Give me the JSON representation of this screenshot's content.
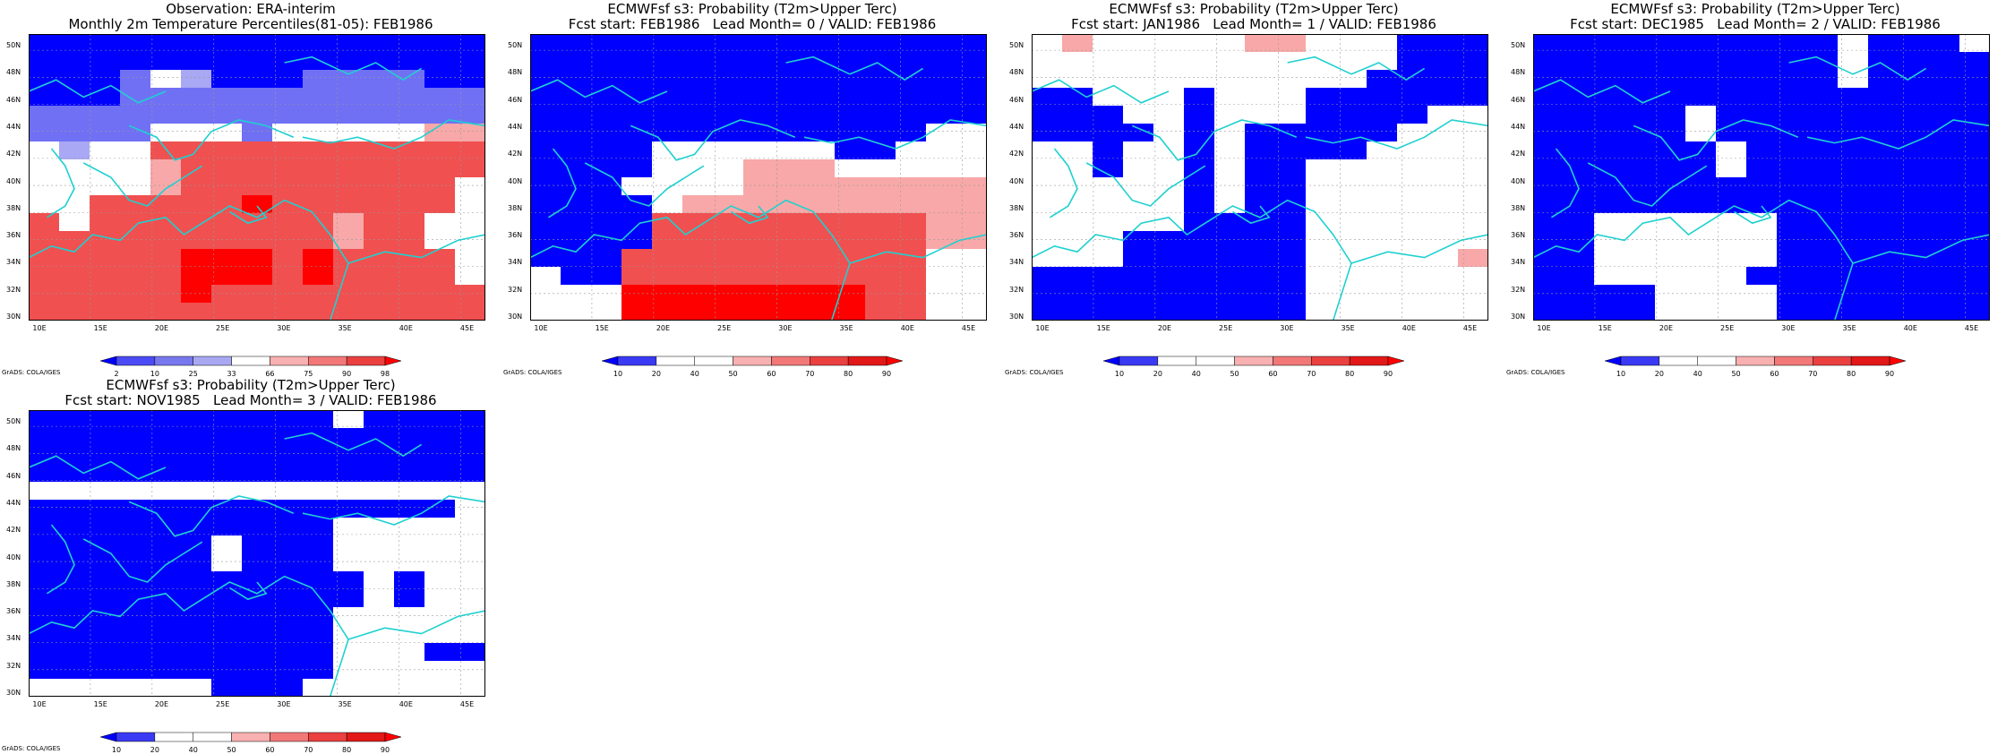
{
  "grads_credit": "GrADS: COLA/IGES",
  "lon_labels": [
    "10E",
    "15E",
    "20E",
    "25E",
    "30E",
    "35E",
    "40E",
    "45E"
  ],
  "lat_labels": [
    "30N",
    "32N",
    "34N",
    "36N",
    "38N",
    "40N",
    "42N",
    "44N",
    "46N",
    "48N",
    "50N"
  ],
  "obs_legend": {
    "labels": [
      "2",
      "10",
      "25",
      "33",
      "66",
      "75",
      "90",
      "98"
    ],
    "colors": [
      "#0000ff",
      "#4b4bf5",
      "#7878ee",
      "#a8a8f2",
      "#ffffff",
      "#f8b0b0",
      "#f27878",
      "#ea4040",
      "#ff0000"
    ]
  },
  "prob_legend": {
    "labels": [
      "10",
      "20",
      "40",
      "50",
      "60",
      "70",
      "80",
      "90"
    ],
    "colors": [
      "#0000ff",
      "#3a3af5",
      "#ffffff",
      "#ffffff",
      "#f8b0b0",
      "#f27878",
      "#ea4040",
      "#e21818",
      "#ff0000"
    ]
  },
  "panels": [
    {
      "title1": "Observation: ERA-interim",
      "title2": "Monthly 2m Temperature Percentiles(81-05): FEB1986",
      "legend": "obs",
      "grid": [
        "BBBBBBBBBBBBBBB",
        "BBBBBBBBBBBBBBB",
        "BBBmMlBBBmmmmBB",
        "BBBmmmmmmmmmmmm",
        "mmmmmmmmmmmmmmm",
        "mmmmWWWmWWWWWrr",
        "WlWWRRRRRRRRRRR",
        "WWWWrRRRRRRRRRR",
        "WWWWrRRRRRRRRRW",
        "WWRRRRRDRRRRRRW",
        "RWRRRRRRRRrRRWW",
        "RRRRRRRRRRrRRWW",
        "RRRRRDDDRDRRRRW",
        "RRRRRDDDRDRRRRW",
        "RRRRRDRRRRRRRRR",
        "RRRRRRRRRRRRRRR"
      ]
    },
    {
      "title1": "ECMWFsf s3: Probability (T2m>Upper Terc)",
      "title2": "Fcst start: FEB1986   Lead Month= 0 / VALID: FEB1986",
      "legend": "prob",
      "grid": [
        "BBBBBBBBBBBBBBB",
        "BBBBBBBBBBBBBBB",
        "BBBBBBBBBBBBBBB",
        "BBBBBBBBBBBBBBB",
        "BBBBBBBBBBBBBBB",
        "BBBBBBBBBBBBBWW",
        "BBBBWWWWWWBBWWW",
        "BBBBWWWrrrWWWWW",
        "BBBWWWWrrrrrrrr",
        "BBBBWrrrrrrrrrr",
        "BBBBRRRRRRRRRrr",
        "BBBBRRRRRRRRRrr",
        "BBBRRRRRRRRRRWW",
        "WBBRRRRRRRRRRWW",
        "WWWDDDDDDDDRRWW",
        "WWWDDDDDDDDRRWW"
      ]
    },
    {
      "title1": "ECMWFsf s3: Probability (T2m>Upper Terc)",
      "title2": "Fcst start: JAN1986   Lead Month= 1 / VALID: FEB1986",
      "legend": "prob",
      "grid": [
        "WrWWWWWrrWWWBBB",
        "WWWWWWWWWWWWBBB",
        "WWWWWWWWWWWBBBB",
        "BBWWWBWWWBBBBBB",
        "BBBWWBWWWBBBBWW",
        "BBBBWBWBBBBBWWW",
        "WWBWWBWBBBBWWWW",
        "WWBWWBWBBWWWWWW",
        "WWWWWBWBBWWWWWW",
        "WWWWWBWBBWWWWWW",
        "WWWWWBBBBWWWWWW",
        "WWWBBBBBBWWWWWW",
        "WWWBBBBBBWWWWWr",
        "BBBBBBBBBWWWWWW",
        "BBBBBBBBBWWWWWW",
        "BBBBBBBBBWWWWWW"
      ]
    },
    {
      "title1": "ECMWFsf s3: Probability (T2m>Upper Terc)",
      "title2": "Fcst start: DEC1985   Lead Month= 2 / VALID: FEB1986",
      "legend": "prob",
      "grid": [
        "BBBBBBBBBBWBBBW",
        "BBBBBBBBBBWBBBB",
        "BBBBBBBBBBWBBBB",
        "BBBBBBBBBBBBBBB",
        "BBBBBWBBBBBBBBB",
        "BBBBBWBBBBBBBBB",
        "BBBBBBWBBBBBBBB",
        "BBBBBBWBBBBBBBB",
        "BBBBBBBBBBBBBBB",
        "BBBBBBBBBBBBBBB",
        "BBWWWWWWBBBBBBB",
        "BBWWWWWWBBBBBBB",
        "BBWWWWWWBBBBBBB",
        "BBWWWWWBBBBBBBB",
        "BBBBWWWWBBBBBBB",
        "BBBBWWWWBBBBBBB"
      ]
    },
    {
      "title1": "ECMWFsf s3: Probability (T2m>Upper Terc)",
      "title2": "Fcst start: NOV1985   Lead Month= 3 / VALID: FEB1986",
      "legend": "prob",
      "grid": [
        "BBBBBBBBBBWBBBB",
        "BBBBBBBBBBBBBBB",
        "BBBBBBBBBBBBBBB",
        "BBBBBBBBBBBBBBB",
        "WWWWWWWWWWWWWWW",
        "BBBBBBBBBBBBBBW",
        "BBBBBBBBBBWWWWW",
        "BBBBBBWBBBWWWWW",
        "BBBBBBWBBBWWWWW",
        "BBBBBBBBBBBWBWW",
        "BBBBBBBBBBBWBWW",
        "BBBBBBBBBBWWWWW",
        "BBBBBBBBBBWWWWW",
        "BBBBBBBBBBWWWBB",
        "BBBBBBBBBBWWWWW",
        "WWWWWWBBBWWWWWW"
      ]
    }
  ]
}
